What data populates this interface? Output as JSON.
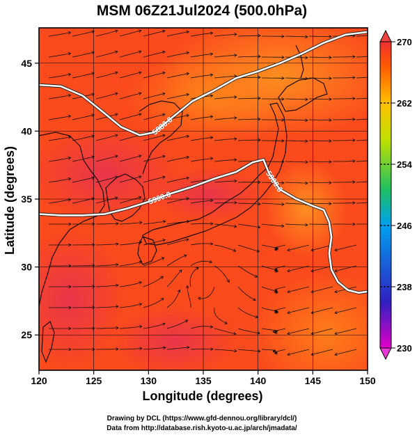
{
  "title": "MSM 06Z21Jul2024 (500.0hPa)",
  "chart_data": {
    "type": "heatmap",
    "xlabel": "Longitude (degrees)",
    "ylabel": "Latitude  (degrees)",
    "xlim": [
      120,
      150
    ],
    "ylim": [
      22.4,
      47.6
    ],
    "xticks": [
      120,
      125,
      130,
      135,
      140,
      145,
      150
    ],
    "yticks": [
      25,
      30,
      35,
      40,
      45
    ],
    "grid": true,
    "colorbar": {
      "range": [
        230,
        270
      ],
      "ticks": [
        230,
        238,
        246,
        254,
        262,
        270
      ],
      "colors": [
        "#e000c8",
        "#3020c0",
        "#00a0f0",
        "#20c060",
        "#c0e000",
        "#ffc000",
        "#ff5a00",
        "#f03030"
      ]
    },
    "contours": [
      {
        "label": "5880.0",
        "color": "#ffffff",
        "points": [
          [
            120,
            43.4
          ],
          [
            122,
            43.3
          ],
          [
            124,
            42.6
          ],
          [
            126,
            41.3
          ],
          [
            127.5,
            40.3
          ],
          [
            129.2,
            39.7
          ],
          [
            130.5,
            39.9
          ],
          [
            132,
            40.9
          ],
          [
            134,
            42.2
          ],
          [
            136,
            43.0
          ],
          [
            138,
            43.9
          ],
          [
            140,
            44.4
          ],
          [
            142,
            45.0
          ],
          [
            144,
            45.7
          ],
          [
            146,
            46.5
          ],
          [
            148,
            47.1
          ],
          [
            150,
            47.3
          ]
        ]
      },
      {
        "label": "5900.0",
        "color": "#ffffff",
        "points": [
          [
            120,
            33.9
          ],
          [
            122,
            33.8
          ],
          [
            124,
            33.8
          ],
          [
            126,
            33.9
          ],
          [
            128,
            34.3
          ],
          [
            130,
            34.8
          ],
          [
            132,
            35.4
          ],
          [
            134,
            35.9
          ],
          [
            136,
            36.5
          ],
          [
            138,
            37.0
          ],
          [
            139.5,
            37.7
          ],
          [
            140.5,
            37.9
          ],
          [
            141,
            36.9
          ],
          [
            142,
            35.7
          ],
          [
            143.5,
            35.0
          ],
          [
            145,
            34.5
          ],
          [
            146,
            34.2
          ],
          [
            146.5,
            33.3
          ],
          [
            146.7,
            32.2
          ],
          [
            146.5,
            31.0
          ],
          [
            146.7,
            29.8
          ],
          [
            147.3,
            28.9
          ],
          [
            148.2,
            28.3
          ],
          [
            149.2,
            28.1
          ],
          [
            150,
            28.2
          ]
        ]
      }
    ]
  },
  "credits": [
    "Drawing by DCL (https://www.gfd-dennou.org/library/dcl/)",
    "Data from http://database.rish.kyoto-u.ac.jp/arch/jmadata/"
  ]
}
